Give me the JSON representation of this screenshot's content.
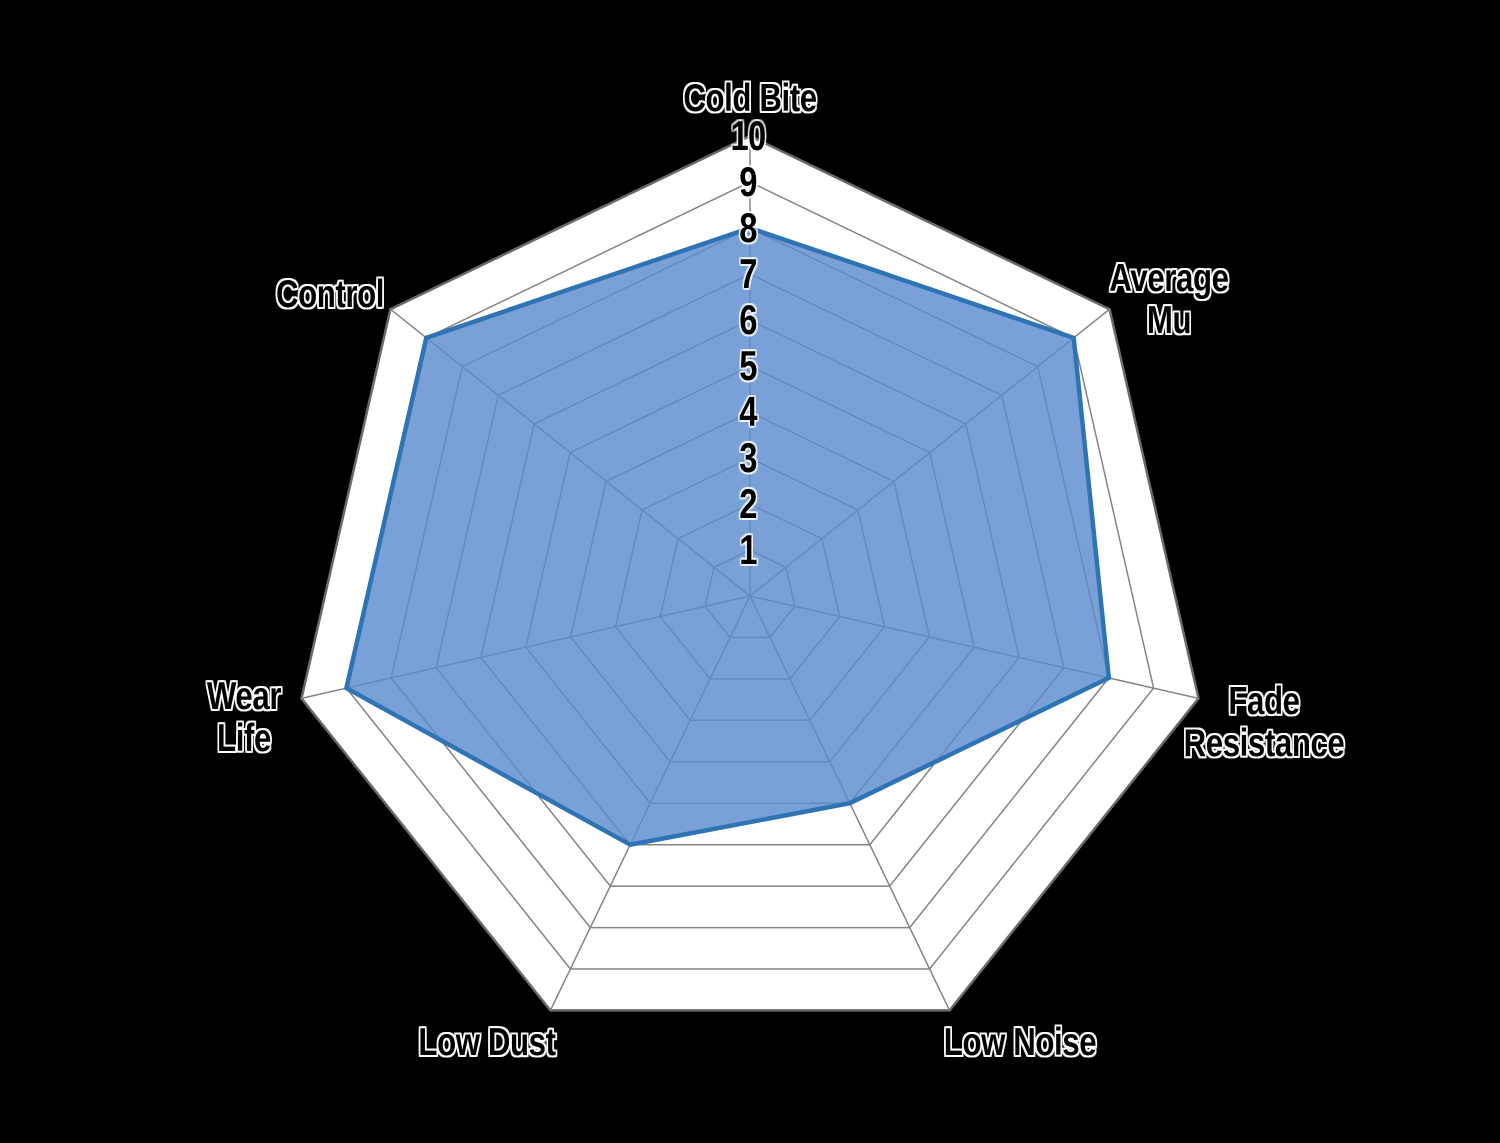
{
  "chart_data": {
    "type": "radar",
    "categories": [
      "Cold Bite",
      "Average Mu",
      "Fade Resistance",
      "Low Noise",
      "Low Dust",
      "Wear Life",
      "Control"
    ],
    "axis_labels_display": [
      "Cold Bite",
      "Average\nMu",
      "Fade\nResistance",
      "Low Noise",
      "Low Dust",
      "Wear\nLife",
      "Control"
    ],
    "values": [
      8,
      9,
      8,
      5,
      6,
      9,
      9
    ],
    "ticks": [
      "1",
      "2",
      "3",
      "4",
      "5",
      "6",
      "7",
      "8",
      "9",
      "10"
    ],
    "scale_min": 0,
    "scale_max": 10,
    "grid": true,
    "legend": "none",
    "colors": {
      "page_background": "#000000",
      "chart_background": "#ffffff",
      "grid_inner": "#848484",
      "grid_outer": "#6a6a6a",
      "series_fill": "#5b8bce",
      "series_fill_opacity": 0.82,
      "series_stroke": "#2e74b5",
      "label_color": "#000000",
      "label_halo": "#ffffff"
    }
  }
}
